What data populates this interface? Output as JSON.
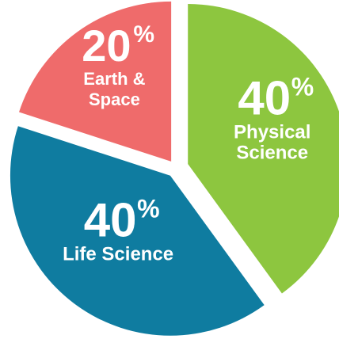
{
  "chart_data": {
    "type": "pie",
    "slices": [
      {
        "label": "Physical Science",
        "label_lines": [
          "Physical",
          "Science"
        ],
        "value": 40,
        "value_text": "40",
        "unit": "%",
        "color": "#8dc63f"
      },
      {
        "label": "Life Science",
        "label_lines": [
          "Life Science"
        ],
        "value": 40,
        "value_text": "40",
        "unit": "%",
        "color": "#0f7ca0"
      },
      {
        "label": "Earth & Space",
        "label_lines": [
          "Earth &",
          "Space"
        ],
        "value": 20,
        "value_text": "20",
        "unit": "%",
        "color": "#ef6b6b"
      }
    ],
    "exploded": true,
    "start_angle_deg": 0,
    "direction": "clockwise"
  }
}
